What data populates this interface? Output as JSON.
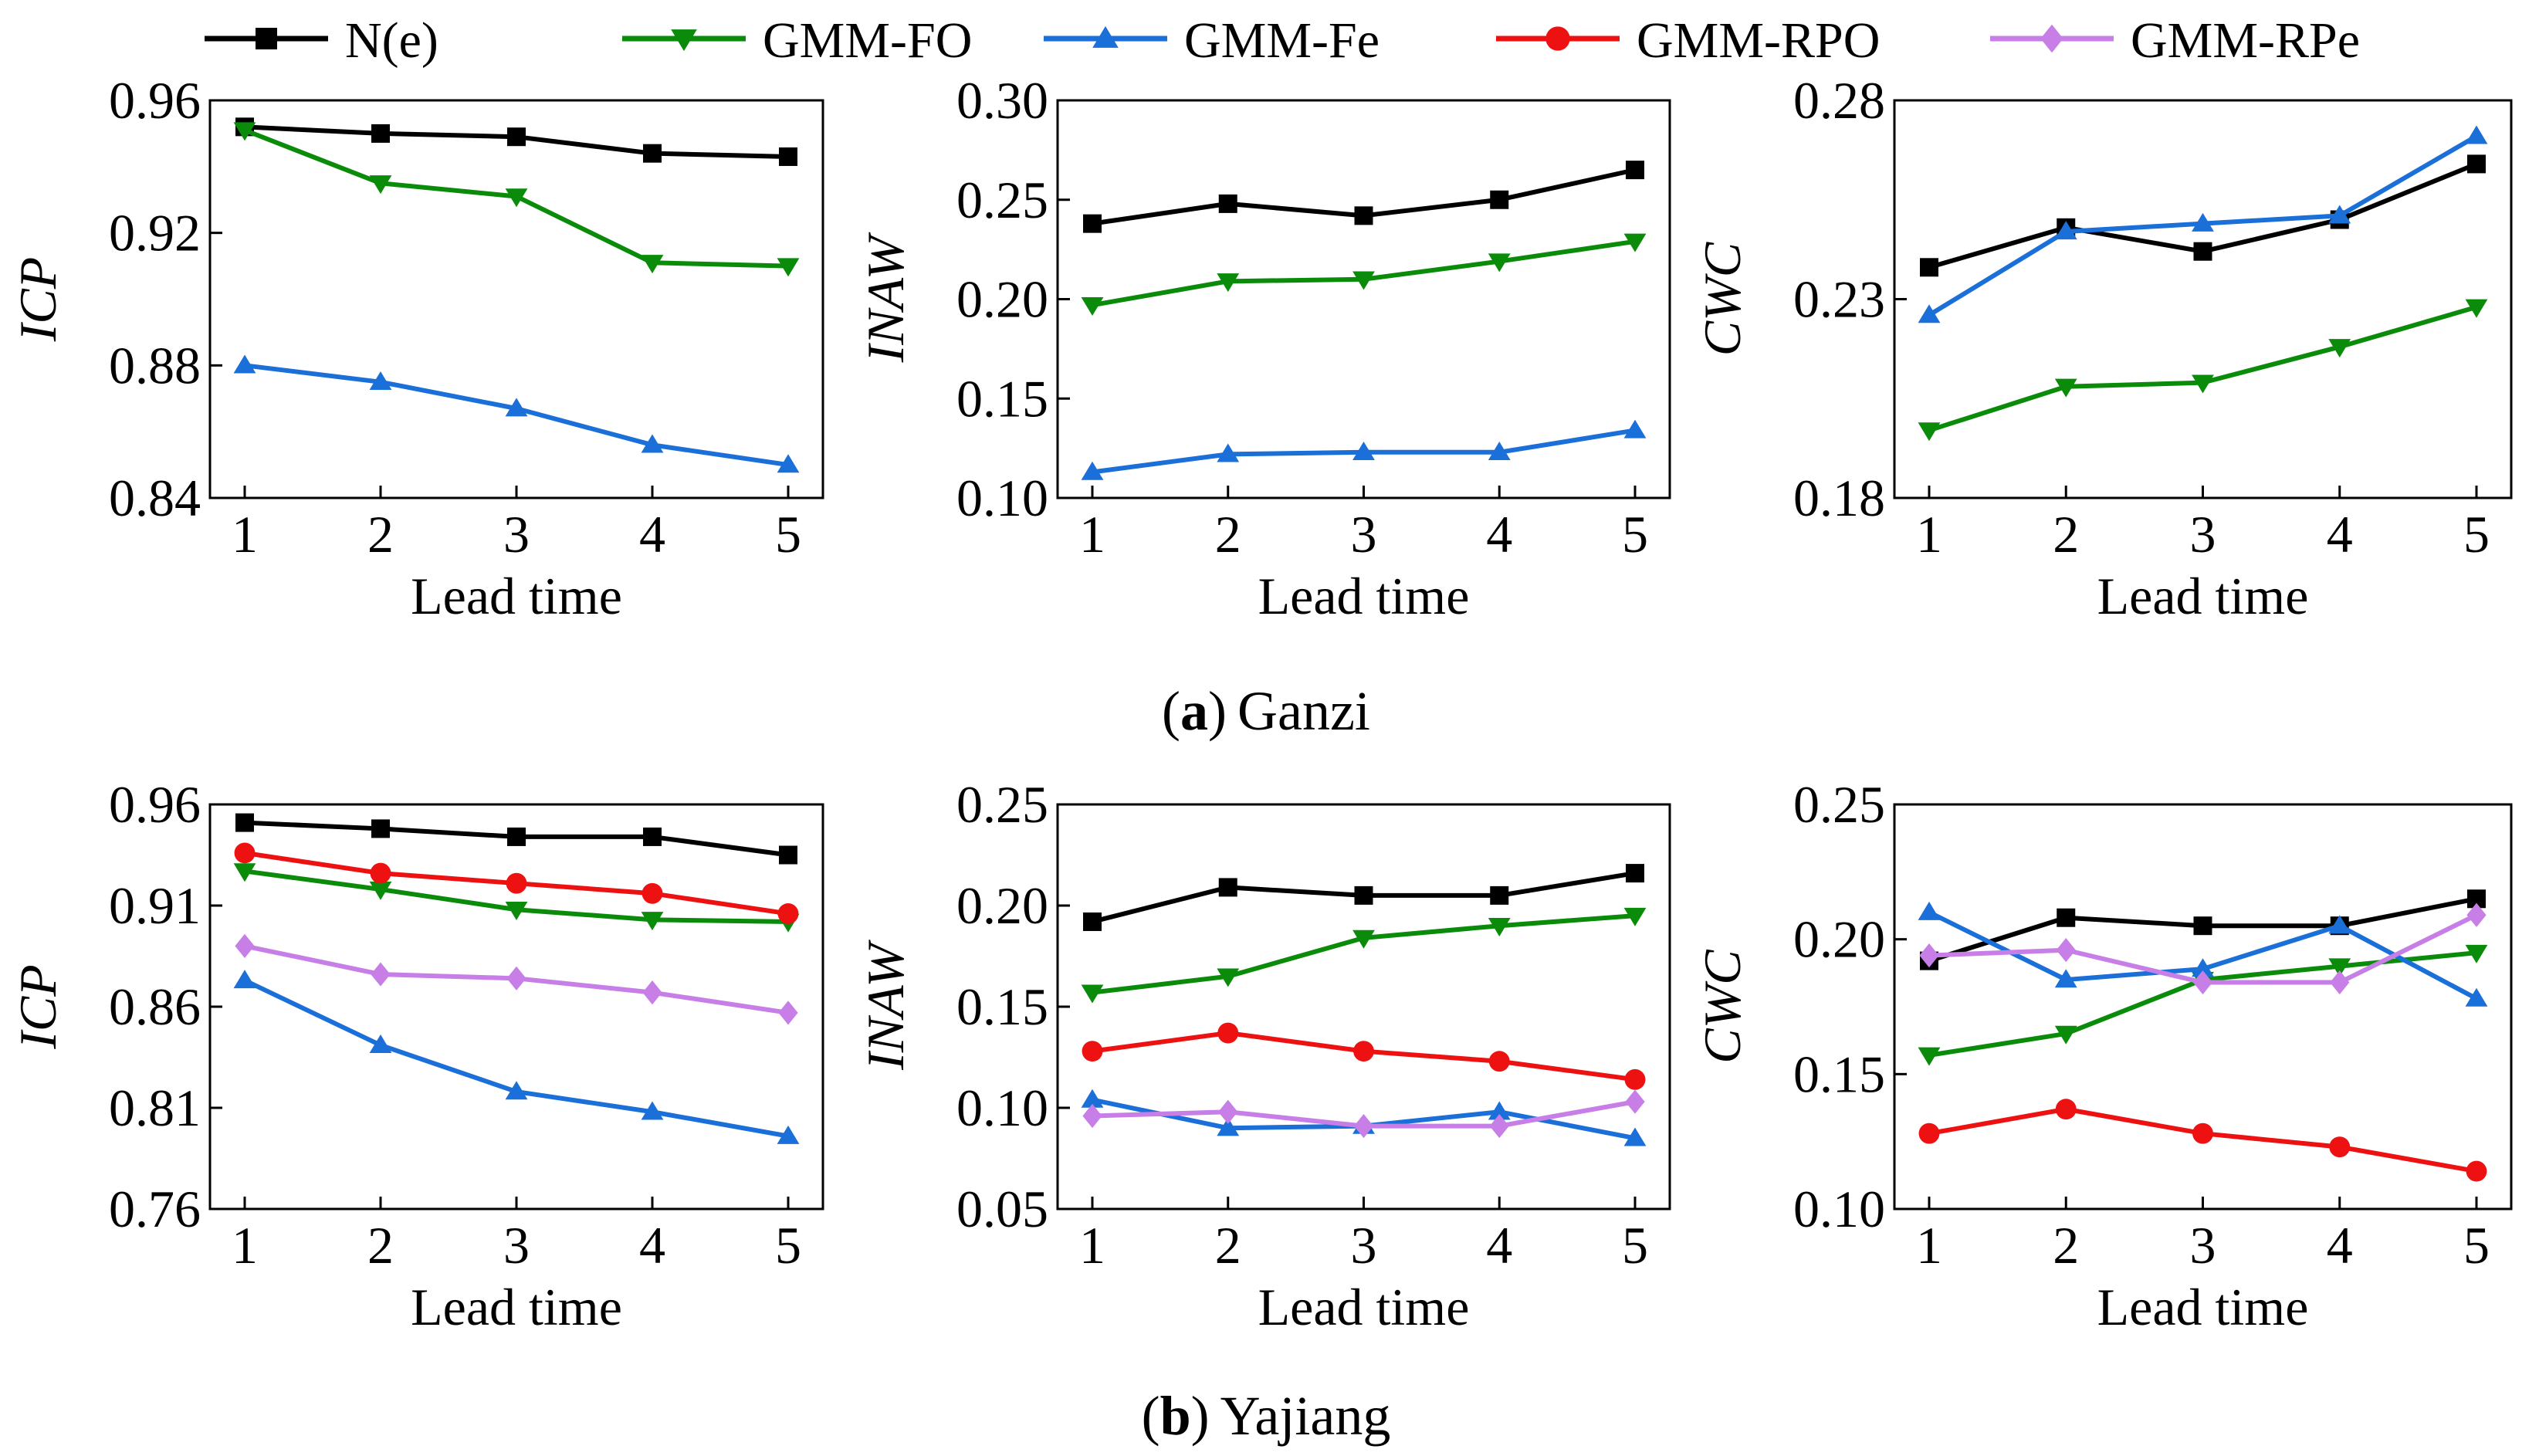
{
  "legend": [
    {
      "name": "N(e)",
      "color": "#000000",
      "marker": "square"
    },
    {
      "name": "GMM-FO",
      "color": "#0a8c0a",
      "marker": "triangle-down"
    },
    {
      "name": "GMM-Fe",
      "color": "#1a6fd8",
      "marker": "triangle-up"
    },
    {
      "name": "GMM-RPO",
      "color": "#ee1111",
      "marker": "circle"
    },
    {
      "name": "GMM-RPe",
      "color": "#c77ee6",
      "marker": "diamond"
    }
  ],
  "captions": {
    "a": {
      "label": "a",
      "open": "(",
      "close": ")",
      "name": "Ganzi"
    },
    "b": {
      "label": "b",
      "open": "(",
      "close": ")",
      "name": "Yajiang"
    }
  },
  "chart_data": [
    {
      "id": "a-icp",
      "type": "line",
      "title": "",
      "xlabel": "Lead time",
      "ylabel": "ICP",
      "categories": [
        1,
        2,
        3,
        4,
        5
      ],
      "ylim": [
        0.84,
        0.96
      ],
      "yticks": [
        "0.84",
        "0.88",
        "0.92",
        "0.96"
      ],
      "series": [
        {
          "name": "N(e)",
          "values": [
            0.952,
            0.95,
            0.949,
            0.944,
            0.943
          ]
        },
        {
          "name": "GMM-FO",
          "values": [
            0.951,
            0.935,
            0.931,
            0.911,
            0.91
          ]
        },
        {
          "name": "GMM-Fe",
          "values": [
            0.88,
            0.875,
            0.867,
            0.856,
            0.85
          ]
        }
      ]
    },
    {
      "id": "a-inaw",
      "type": "line",
      "title": "",
      "xlabel": "Lead time",
      "ylabel": "INAW",
      "categories": [
        1,
        2,
        3,
        4,
        5
      ],
      "ylim": [
        0.1,
        0.3
      ],
      "yticks": [
        "0.10",
        "0.15",
        "0.20",
        "0.25",
        "0.30"
      ],
      "series": [
        {
          "name": "N(e)",
          "values": [
            0.238,
            0.248,
            0.242,
            0.25,
            0.265
          ]
        },
        {
          "name": "GMM-FO",
          "values": [
            0.197,
            0.209,
            0.21,
            0.219,
            0.229
          ]
        },
        {
          "name": "GMM-Fe",
          "values": [
            0.113,
            0.122,
            0.123,
            0.123,
            0.134
          ]
        }
      ]
    },
    {
      "id": "a-cwc",
      "type": "line",
      "title": "",
      "xlabel": "Lead time",
      "ylabel": "CWC",
      "categories": [
        1,
        2,
        3,
        4,
        5
      ],
      "ylim": [
        0.18,
        0.28
      ],
      "yticks": [
        "0.18",
        "0.23",
        "0.28"
      ],
      "series": [
        {
          "name": "N(e)",
          "values": [
            0.238,
            0.248,
            0.242,
            0.25,
            0.264
          ]
        },
        {
          "name": "GMM-FO",
          "values": [
            0.197,
            0.208,
            0.209,
            0.218,
            0.228
          ]
        },
        {
          "name": "GMM-Fe",
          "values": [
            0.226,
            0.247,
            0.249,
            0.251,
            0.271
          ]
        }
      ]
    },
    {
      "id": "b-icp",
      "type": "line",
      "title": "",
      "xlabel": "Lead time",
      "ylabel": "ICP",
      "categories": [
        1,
        2,
        3,
        4,
        5
      ],
      "ylim": [
        0.76,
        0.96
      ],
      "yticks": [
        "0.76",
        "0.81",
        "0.86",
        "0.91",
        "0.96"
      ],
      "series": [
        {
          "name": "N(e)",
          "values": [
            0.951,
            0.948,
            0.944,
            0.944,
            0.935
          ]
        },
        {
          "name": "GMM-FO",
          "values": [
            0.927,
            0.918,
            0.908,
            0.903,
            0.902
          ]
        },
        {
          "name": "GMM-Fe",
          "values": [
            0.873,
            0.841,
            0.818,
            0.808,
            0.796
          ]
        },
        {
          "name": "GMM-RPO",
          "values": [
            0.936,
            0.926,
            0.921,
            0.916,
            0.906
          ]
        },
        {
          "name": "GMM-RPe",
          "values": [
            0.89,
            0.876,
            0.874,
            0.867,
            0.857
          ]
        }
      ]
    },
    {
      "id": "b-inaw",
      "type": "line",
      "title": "",
      "xlabel": "Lead time",
      "ylabel": "INAW",
      "categories": [
        1,
        2,
        3,
        4,
        5
      ],
      "ylim": [
        0.05,
        0.25
      ],
      "yticks": [
        "0.05",
        "0.10",
        "0.15",
        "0.20",
        "0.25"
      ],
      "series": [
        {
          "name": "N(e)",
          "values": [
            0.192,
            0.209,
            0.205,
            0.205,
            0.216
          ]
        },
        {
          "name": "GMM-FO",
          "values": [
            0.157,
            0.165,
            0.184,
            0.19,
            0.195
          ]
        },
        {
          "name": "GMM-Fe",
          "values": [
            0.104,
            0.09,
            0.091,
            0.098,
            0.085
          ]
        },
        {
          "name": "GMM-RPO",
          "values": [
            0.128,
            0.137,
            0.128,
            0.123,
            0.114
          ]
        },
        {
          "name": "GMM-RPe",
          "values": [
            0.096,
            0.098,
            0.091,
            0.091,
            0.103
          ]
        }
      ]
    },
    {
      "id": "b-cwc",
      "type": "line",
      "title": "",
      "xlabel": "Lead time",
      "ylabel": "CWC",
      "categories": [
        1,
        2,
        3,
        4,
        5
      ],
      "ylim": [
        0.1,
        0.25
      ],
      "yticks": [
        "0.10",
        "0.15",
        "0.20",
        "0.25"
      ],
      "series": [
        {
          "name": "N(e)",
          "values": [
            0.192,
            0.208,
            0.205,
            0.205,
            0.215
          ]
        },
        {
          "name": "GMM-FO",
          "values": [
            0.157,
            0.165,
            0.185,
            0.19,
            0.195
          ]
        },
        {
          "name": "GMM-Fe",
          "values": [
            0.21,
            0.185,
            0.189,
            0.205,
            0.178
          ]
        },
        {
          "name": "GMM-RPO",
          "values": [
            0.128,
            0.137,
            0.128,
            0.123,
            0.114
          ]
        },
        {
          "name": "GMM-RPe",
          "values": [
            0.194,
            0.196,
            0.184,
            0.184,
            0.209
          ]
        }
      ]
    }
  ]
}
